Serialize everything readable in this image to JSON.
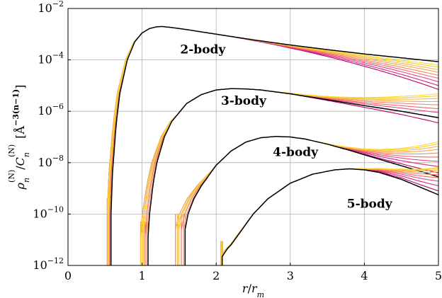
{
  "chart_data": {
    "type": "line",
    "title": "",
    "xlabel": "r/r_m",
    "ylabel": "ρ_n^(N)/C_n^(N) [Å^−3(n−1)]",
    "xlim": [
      0,
      5
    ],
    "ylim_log10": [
      -12,
      -2
    ],
    "yscale": "log",
    "grid": true,
    "x_ticks": [
      0,
      1,
      2,
      3,
      4,
      5
    ],
    "x_tick_labels": [
      "0",
      "1",
      "2",
      "3",
      "4",
      "5"
    ],
    "y_ticks_log10": [
      -12,
      -10,
      -8,
      -6,
      -4,
      -2
    ],
    "y_tick_labels": [
      {
        "base": "10",
        "exp": "−12"
      },
      {
        "base": "10",
        "exp": "−10"
      },
      {
        "base": "10",
        "exp": "−8"
      },
      {
        "base": "10",
        "exp": "−6"
      },
      {
        "base": "10",
        "exp": "−4"
      },
      {
        "base": "10",
        "exp": "−2"
      }
    ],
    "palette": [
      "#b8006a",
      "#e9378a",
      "#f36e6a",
      "#f7a258",
      "#f8c040",
      "#f6df2a"
    ],
    "reference_color": "#000000",
    "annotations": [
      {
        "text": "2-body",
        "x": 1.82,
        "y_log10": -3.75
      },
      {
        "text": "3-body",
        "x": 2.37,
        "y_log10": -5.75
      },
      {
        "text": "4-body",
        "x": 3.07,
        "y_log10": -7.75
      },
      {
        "text": "5-body",
        "x": 4.07,
        "y_log10": -9.75
      }
    ],
    "families": [
      {
        "body": 2,
        "x_onset": 0.57,
        "x_start_offsets": [
          -0.05,
          -0.04,
          -0.03,
          -0.02,
          -0.01,
          0.0
        ],
        "reference": {
          "x": [
            0.58,
            0.6,
            0.65,
            0.7,
            0.8,
            0.9,
            1.0,
            1.1,
            1.2,
            1.27,
            1.4,
            1.6,
            2.0,
            2.5,
            3.0,
            3.5,
            4.0,
            4.5,
            5.0
          ],
          "y_log10": [
            -10.0,
            -8.4,
            -6.5,
            -5.3,
            -4.0,
            -3.3,
            -2.95,
            -2.78,
            -2.71,
            -2.7,
            -2.74,
            -2.82,
            -3.0,
            -3.22,
            -3.42,
            -3.6,
            -3.77,
            -3.92,
            -4.07
          ]
        },
        "fan_end_y_log10": [
          -5.15,
          -5.0,
          -4.85,
          -4.72,
          -4.6,
          -4.48,
          -4.38,
          -4.28,
          -4.2
        ],
        "fan_start_x": 2.0
      },
      {
        "body": 3,
        "x_onset": 1.07,
        "x_start_offsets": [
          -0.1,
          -0.08,
          -0.06,
          -0.04,
          -0.02,
          0.0
        ],
        "reference": {
          "x": [
            1.08,
            1.1,
            1.15,
            1.2,
            1.3,
            1.4,
            1.6,
            1.8,
            2.0,
            2.2,
            2.4,
            2.6,
            3.0,
            3.5,
            4.0,
            4.5,
            5.0
          ],
          "y_log10": [
            -10.9,
            -10.0,
            -8.8,
            -8.0,
            -7.0,
            -6.4,
            -5.7,
            -5.35,
            -5.17,
            -5.12,
            -5.13,
            -5.17,
            -5.32,
            -5.55,
            -5.78,
            -6.0,
            -6.25
          ]
        },
        "fan_end_y_log10": [
          -6.45,
          -6.25,
          -6.05,
          -5.9,
          -5.75,
          -5.62,
          -5.5,
          -5.4,
          -5.32
        ],
        "fan_start_x": 2.6
      },
      {
        "body": 4,
        "x_onset": 1.57,
        "x_start_offsets": [
          -0.13,
          -0.1,
          -0.08,
          -0.05,
          -0.02,
          0.0
        ],
        "reference": {
          "x": [
            1.58,
            1.62,
            1.7,
            1.8,
            2.0,
            2.2,
            2.4,
            2.6,
            2.8,
            3.0,
            3.2,
            3.5,
            3.8,
            4.1,
            4.5,
            5.0
          ],
          "y_log10": [
            -10.6,
            -10.0,
            -9.4,
            -8.9,
            -8.1,
            -7.55,
            -7.2,
            -7.03,
            -6.98,
            -7.0,
            -7.08,
            -7.28,
            -7.52,
            -7.78,
            -8.12,
            -8.55
          ]
        },
        "fan_end_y_log10": [
          -8.4,
          -8.15,
          -7.95,
          -7.78,
          -7.62,
          -7.48,
          -7.36,
          -7.26,
          -7.18
        ],
        "fan_start_x": 3.3
      },
      {
        "body": 5,
        "x_onset": 2.08,
        "x_start_offsets": [
          -0.02,
          -0.015,
          -0.01,
          -0.005,
          0.0,
          0.005
        ],
        "reference": {
          "x": [
            2.08,
            2.15,
            2.2,
            2.3,
            2.5,
            2.7,
            3.0,
            3.3,
            3.6,
            3.8,
            4.0,
            4.2,
            4.5,
            5.0
          ],
          "y_log10": [
            -11.65,
            -11.35,
            -11.2,
            -10.8,
            -10.0,
            -9.4,
            -8.8,
            -8.45,
            -8.28,
            -8.24,
            -8.28,
            -8.38,
            -8.65,
            -9.25
          ]
        },
        "fan_end_y_log10": [
          -9.1,
          -8.9,
          -8.72,
          -8.58,
          -8.46,
          -8.36,
          -8.28,
          -8.22,
          -8.18
        ],
        "fan_start_x": 3.7
      }
    ]
  }
}
